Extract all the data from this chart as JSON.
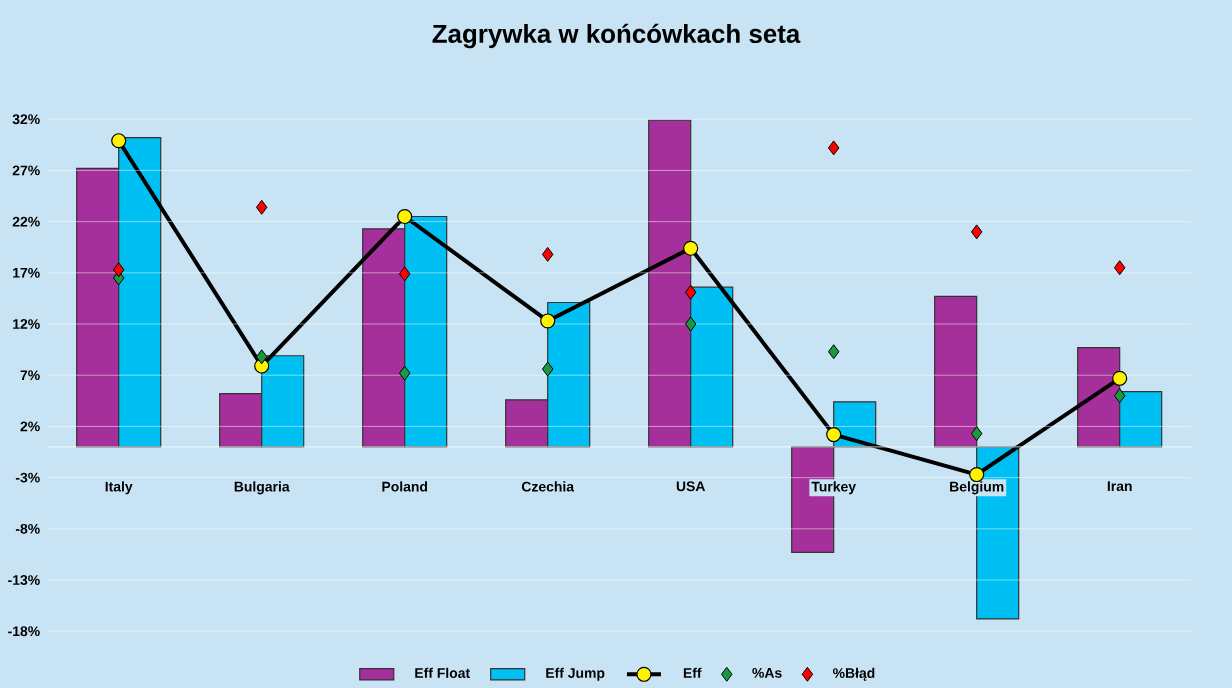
{
  "chart_data": {
    "type": "bar",
    "title": "Zagrywka w końcówkach seta",
    "categories": [
      "Italy",
      "Bulgaria",
      "Poland",
      "Czechia",
      "USA",
      "Turkey",
      "Belgium",
      "Iran"
    ],
    "series": [
      {
        "name": "Eff Float",
        "color": "#a6309b",
        "values": [
          27.2,
          5.2,
          21.3,
          4.6,
          31.9,
          -10.3,
          14.7,
          9.7
        ]
      },
      {
        "name": "Eff Jump",
        "color": "#00bff2",
        "values": [
          30.2,
          8.9,
          22.5,
          14.1,
          15.6,
          4.4,
          -16.8,
          5.4
        ]
      },
      {
        "name": "Eff",
        "type": "line",
        "color": "#000000",
        "marker": "circle",
        "line_style": "solid",
        "values": [
          29.9,
          7.9,
          22.5,
          12.3,
          19.4,
          1.2,
          -2.7,
          6.7
        ]
      },
      {
        "name": "%As",
        "type": "scatter",
        "color": "#1a9a40",
        "marker": "diamond",
        "values": [
          16.5,
          8.8,
          7.2,
          7.6,
          12.0,
          9.3,
          1.3,
          5.0
        ]
      },
      {
        "name": "%Błąd",
        "type": "scatter",
        "color": "#ff0000",
        "marker": "diamond",
        "values": [
          17.3,
          23.4,
          16.9,
          18.8,
          15.1,
          29.2,
          21.0,
          17.5
        ]
      }
    ],
    "ylim": [
      -18,
      32
    ],
    "yticks": [
      {
        "value": -18,
        "label": "-18%"
      },
      {
        "value": -13,
        "label": "-13%"
      },
      {
        "value": -8,
        "label": "-8%"
      },
      {
        "value": -3,
        "label": "-3%"
      },
      {
        "value": 2,
        "label": "2%"
      },
      {
        "value": 7,
        "label": "7%"
      },
      {
        "value": 12,
        "label": "12%"
      },
      {
        "value": 17,
        "label": "17%"
      },
      {
        "value": 22,
        "label": "22%"
      },
      {
        "value": 27,
        "label": "27%"
      },
      {
        "value": 32,
        "label": "32%"
      }
    ],
    "grid": "y",
    "legend": "bottom"
  }
}
